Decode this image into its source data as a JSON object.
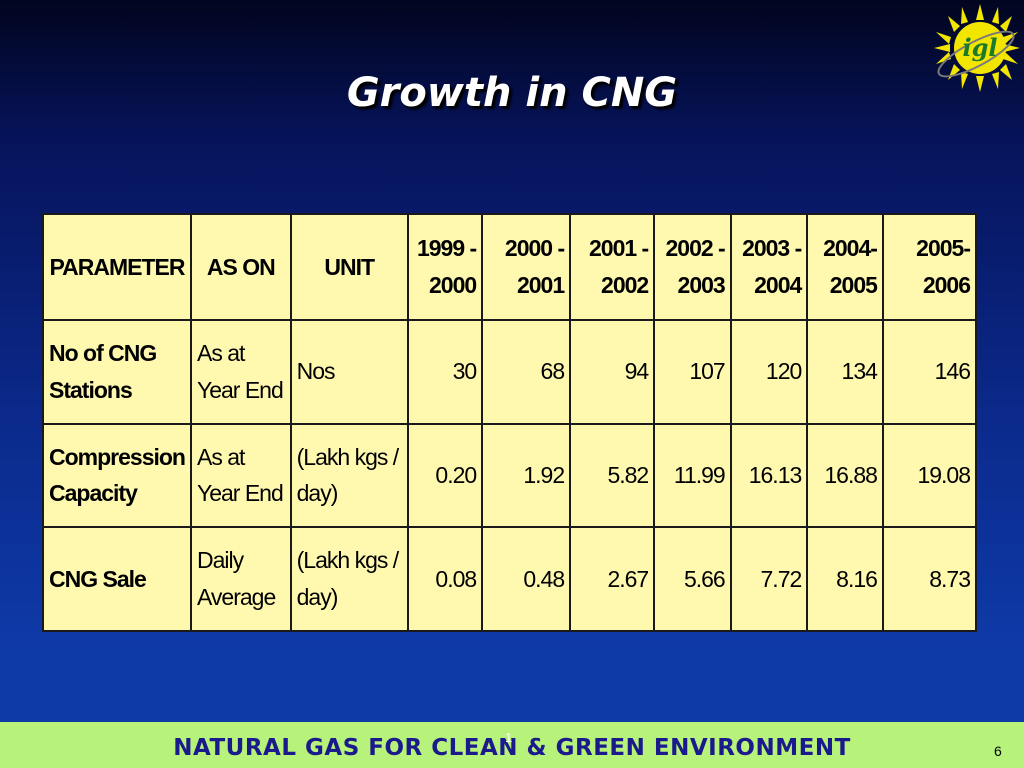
{
  "slide": {
    "title": "Growth in CNG",
    "logo_text": "igl",
    "footer": "NATURAL GAS FOR CLEAN & GREEN ENVIRONMENT",
    "footer_mark": "1",
    "page_number": "6"
  },
  "table": {
    "headers": [
      "PARAMETER",
      "AS ON",
      "UNIT"
    ],
    "years": [
      [
        "1999 -",
        "2000"
      ],
      [
        "2000 -",
        "2001"
      ],
      [
        "2001 -",
        "2002"
      ],
      [
        "2002 -",
        "2003"
      ],
      [
        "2003 -",
        "2004"
      ],
      [
        "2004-",
        "2005"
      ],
      [
        "2005-",
        "2006"
      ]
    ],
    "rows": [
      {
        "parameter": [
          "No of CNG",
          "Stations"
        ],
        "as_on": [
          "As at",
          "Year End"
        ],
        "unit": [
          "Nos"
        ],
        "values": [
          "30",
          "68",
          "94",
          "107",
          "120",
          "134",
          "146"
        ]
      },
      {
        "parameter": [
          "Compression",
          "Capacity"
        ],
        "as_on": [
          "As at",
          "Year End"
        ],
        "unit": [
          "(Lakh kgs /",
          "day)"
        ],
        "values": [
          "0.20",
          "1.92",
          "5.82",
          "11.99",
          "16.13",
          "16.88",
          "19.08"
        ]
      },
      {
        "parameter": [
          "CNG Sale"
        ],
        "as_on": [
          "Daily",
          "Average"
        ],
        "unit": [
          "(Lakh kgs /",
          "day)"
        ],
        "values": [
          "0.08",
          "0.48",
          "2.67",
          "5.66",
          "7.72",
          "8.16",
          "8.73"
        ]
      }
    ]
  },
  "colors": {
    "table_fill": "#fff9b0",
    "footer_band": "#b7f27a",
    "footer_text": "#1a1a8c",
    "logo_sun": "#f2e600",
    "logo_text": "#1b7a2a"
  }
}
